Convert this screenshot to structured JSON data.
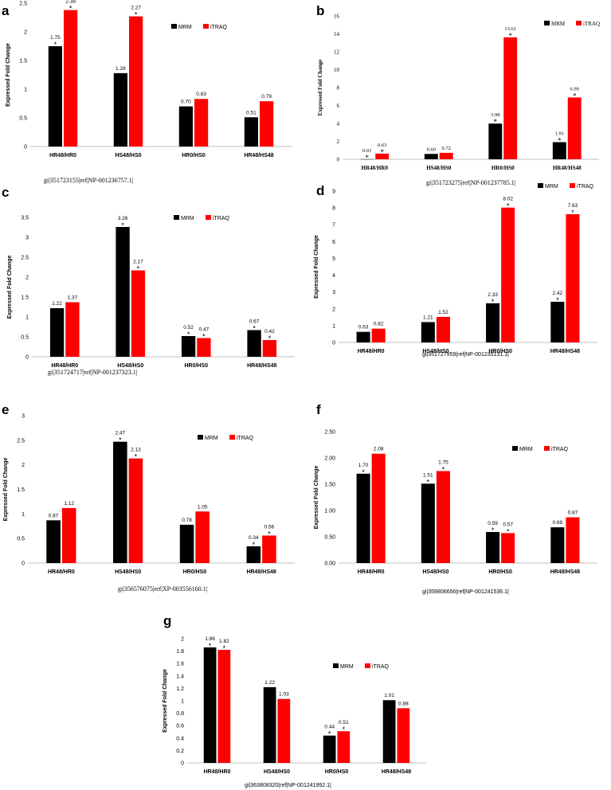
{
  "colors": {
    "MRM": "#000000",
    "iTRAQ": "#ff0000"
  },
  "chart_data": [
    {
      "panel": "a",
      "type": "bar",
      "title": "gi|351723155|ref|NP-001236757.1|",
      "ylabel": "Expressed Fold Change",
      "xlabel": "",
      "categories": [
        "HR48/HR0",
        "HS48/HS0",
        "HR0/HS0",
        "HR48/HS48"
      ],
      "ylim": [
        0,
        2.5
      ],
      "yticks": [
        "0",
        "0.5",
        "1",
        "1.5",
        "2",
        "2.5"
      ],
      "ytick_values": [
        0,
        0.5,
        1,
        1.5,
        2,
        2.5
      ],
      "legend": [
        "MRM",
        "iTRAQ"
      ],
      "series": [
        {
          "name": "MRM",
          "values": [
            1.75,
            1.28,
            0.7,
            0.51
          ],
          "labels": [
            "1.75",
            "1.28",
            "0.70",
            "0.51"
          ],
          "stars": [
            true,
            false,
            false,
            false
          ]
        },
        {
          "name": "iTRAQ",
          "values": [
            2.38,
            2.27,
            0.83,
            0.79
          ],
          "labels": [
            "2.38",
            "2.27",
            "0.83",
            "0.79"
          ],
          "stars": [
            true,
            true,
            false,
            false
          ]
        }
      ]
    },
    {
      "panel": "b",
      "type": "bar",
      "title": "gi|351723275|ref|NP-001237785.1|",
      "ylabel": "Expressed Fold Change",
      "xlabel": "",
      "categories": [
        "HR48/HR0",
        "HS48/HS0",
        "HR0/HS0",
        "HR48/HS48"
      ],
      "ylim": [
        0,
        16
      ],
      "yticks": [
        "0",
        "2",
        "4",
        "6",
        "8",
        "10",
        "12",
        "14",
        "16"
      ],
      "ytick_values": [
        0,
        2,
        4,
        6,
        8,
        10,
        12,
        14,
        16
      ],
      "legend": [
        "MRM",
        "iTRAQ"
      ],
      "series": [
        {
          "name": "MRM",
          "values": [
            0.01,
            0.6,
            3.98,
            1.91
          ],
          "labels": [
            "0.01",
            "0.60",
            "3.98",
            "1.91"
          ],
          "stars": [
            true,
            false,
            true,
            true
          ]
        },
        {
          "name": "iTRAQ",
          "values": [
            0.63,
            0.72,
            13.61,
            6.9
          ],
          "labels": [
            "0.63",
            "0.72",
            "13.61",
            "6.90"
          ],
          "stars": [
            true,
            false,
            true,
            true
          ]
        }
      ]
    },
    {
      "panel": "c",
      "type": "bar",
      "title": "gi|351724717|ref|NP-001237323.1|",
      "ylabel": "Expressed Fold Change",
      "xlabel": "",
      "categories": [
        "HR48/HR0",
        "HS48/HS0",
        "HR0/HS0",
        "HR48/HS48"
      ],
      "ylim": [
        0,
        3.5
      ],
      "yticks": [
        "0",
        "0.5",
        "1",
        "1.5",
        "2",
        "2.5",
        "3",
        "3.5"
      ],
      "ytick_values": [
        0,
        0.5,
        1,
        1.5,
        2,
        2.5,
        3,
        3.5
      ],
      "legend": [
        "MRM",
        "iTRAQ"
      ],
      "series": [
        {
          "name": "MRM",
          "values": [
            1.22,
            3.26,
            0.52,
            0.67
          ],
          "labels": [
            "1.22",
            "3.26",
            "0.52",
            "0.67"
          ],
          "stars": [
            false,
            true,
            true,
            true
          ]
        },
        {
          "name": "iTRAQ",
          "values": [
            1.37,
            2.17,
            0.47,
            0.42
          ],
          "labels": [
            "1.37",
            "2.17",
            "0.47",
            "0.42"
          ],
          "stars": [
            false,
            true,
            true,
            true
          ]
        }
      ]
    },
    {
      "panel": "d",
      "type": "bar",
      "title": "gi|351727959|ref|NP-001235131.1|",
      "ylabel": "Expressed Fold Change",
      "xlabel": "",
      "categories": [
        "HR48/HR0",
        "HS48/HS0",
        "HR0/HS0",
        "HR48/HS48"
      ],
      "ylim": [
        0,
        9
      ],
      "yticks": [
        "0",
        "1",
        "2",
        "3",
        "4",
        "5",
        "6",
        "7",
        "8",
        "9"
      ],
      "ytick_values": [
        0,
        1,
        2,
        3,
        4,
        5,
        6,
        7,
        8,
        9
      ],
      "legend": [
        "MRM",
        "iTRAQ"
      ],
      "series": [
        {
          "name": "MRM",
          "values": [
            0.63,
            1.21,
            2.33,
            2.42
          ],
          "labels": [
            "0.63",
            "1.21",
            "2.33",
            "2.42"
          ],
          "stars": [
            false,
            false,
            true,
            true
          ]
        },
        {
          "name": "iTRAQ",
          "values": [
            0.82,
            1.52,
            8.02,
            7.63
          ],
          "labels": [
            "0.82",
            "1.52",
            "8.02",
            "7.63"
          ],
          "stars": [
            false,
            false,
            true,
            true
          ]
        }
      ]
    },
    {
      "panel": "e",
      "type": "bar",
      "title": "gi|356576075|ref|XP-003556160.1|",
      "ylabel": "Expressed Fold Change",
      "xlabel": "",
      "categories": [
        "HR48/HR0",
        "HS48/HS0",
        "HR0/HS0",
        "HR48/HS48"
      ],
      "ylim": [
        0,
        3
      ],
      "yticks": [
        "0",
        "0.5",
        "1",
        "1.5",
        "2",
        "2.5",
        "3"
      ],
      "ytick_values": [
        0,
        0.5,
        1,
        1.5,
        2,
        2.5,
        3
      ],
      "legend": [
        "MRM",
        "iTRAQ"
      ],
      "series": [
        {
          "name": "MRM",
          "values": [
            0.87,
            2.47,
            0.78,
            0.34
          ],
          "labels": [
            "0.87",
            "2.47",
            "0.78",
            "0.34"
          ],
          "stars": [
            false,
            true,
            false,
            true
          ]
        },
        {
          "name": "iTRAQ",
          "values": [
            1.12,
            2.13,
            1.05,
            0.56
          ],
          "labels": [
            "1.12",
            "2.13",
            "1.05",
            "0.56"
          ],
          "stars": [
            false,
            true,
            false,
            true
          ]
        }
      ]
    },
    {
      "panel": "f",
      "type": "bar",
      "title": "gi|359806656|ref|NP-001241536.1|",
      "ylabel": "Expressed Fold Change",
      "xlabel": "",
      "categories": [
        "HR48/HR0",
        "HS48/HS0",
        "HR0/HS0",
        "HR48/HS48"
      ],
      "ylim": [
        0,
        2.5
      ],
      "yticks": [
        "0.00",
        "0.50",
        "1.00",
        "1.50",
        "2.00",
        "2.50"
      ],
      "ytick_values": [
        0,
        0.5,
        1,
        1.5,
        2,
        2.5
      ],
      "legend": [
        "MRM",
        "iTRAQ"
      ],
      "series": [
        {
          "name": "MRM",
          "values": [
            1.7,
            1.51,
            0.59,
            0.68
          ],
          "labels": [
            "1.70",
            "1.51",
            "0.59",
            "0.68"
          ],
          "stars": [
            true,
            true,
            true,
            false
          ]
        },
        {
          "name": "iTRAQ",
          "values": [
            2.08,
            1.75,
            0.57,
            0.87
          ],
          "labels": [
            "2.08",
            "1.75",
            "0.57",
            "0.87"
          ],
          "stars": [
            false,
            true,
            true,
            false
          ]
        }
      ]
    },
    {
      "panel": "g",
      "type": "bar",
      "title": "gi|363808320|ref|NP-001241992.1|",
      "ylabel": "Expressed Fold Change",
      "xlabel": "",
      "categories": [
        "HR48/HR0",
        "HS48/HS0",
        "HR0/HS0",
        "HR48/HS48"
      ],
      "ylim": [
        0,
        2
      ],
      "yticks": [
        "0",
        "0.2",
        "0.4",
        "0.6",
        "0.8",
        "1",
        "1.2",
        "1.4",
        "1.6",
        "1.8",
        "2"
      ],
      "ytick_values": [
        0,
        0.2,
        0.4,
        0.6,
        0.8,
        1,
        1.2,
        1.4,
        1.6,
        1.8,
        2
      ],
      "legend": [
        "MRM",
        "iTRAQ"
      ],
      "series": [
        {
          "name": "MRM",
          "values": [
            1.86,
            1.22,
            0.44,
            1.01
          ],
          "labels": [
            "1.86",
            "1.22",
            "0.44",
            "1.01"
          ],
          "stars": [
            true,
            false,
            true,
            false
          ]
        },
        {
          "name": "iTRAQ",
          "values": [
            1.82,
            1.03,
            0.51,
            0.88
          ],
          "labels": [
            "1.82",
            "1.03",
            "0.51",
            "0.88"
          ],
          "stars": [
            true,
            false,
            true,
            false
          ]
        }
      ]
    }
  ]
}
